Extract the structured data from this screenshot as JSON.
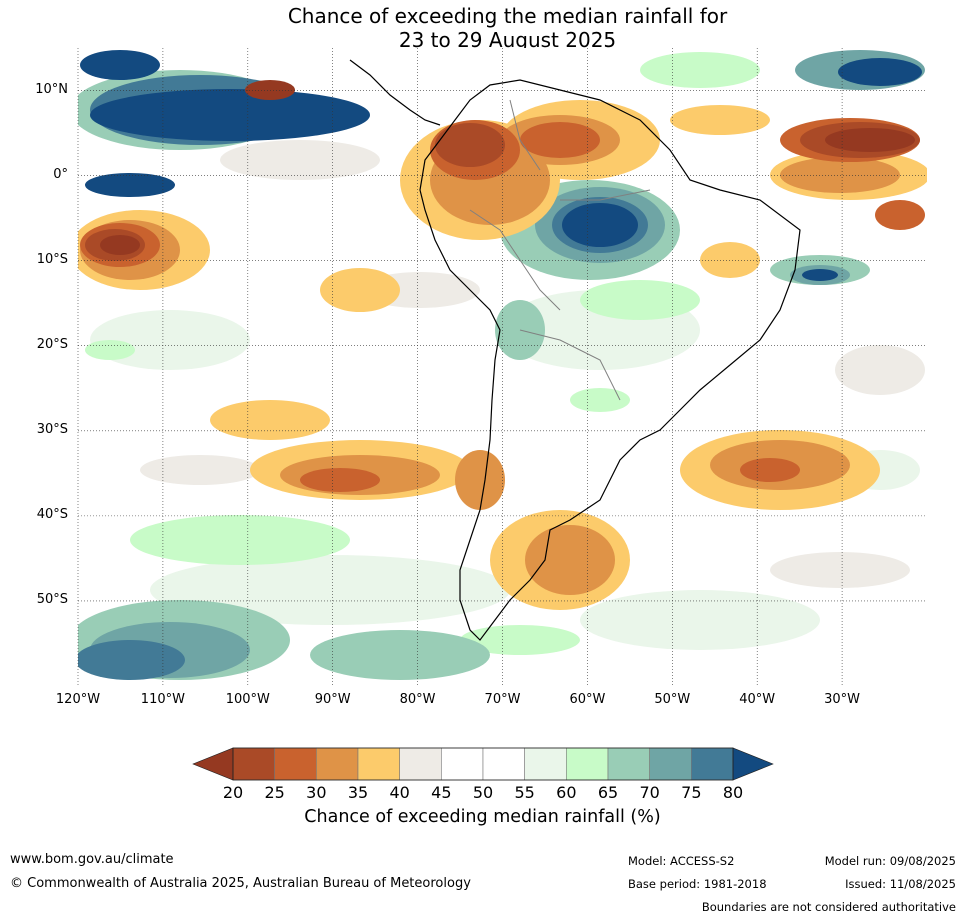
{
  "title_line1": "Chance of exceeding the median rainfall for",
  "title_line2": "23 to 29 August 2025",
  "map": {
    "lon_range": [
      -120,
      -20
    ],
    "lat_range": [
      -60,
      15
    ],
    "lat_labels": [
      {
        "lat": 10,
        "text": "10°N"
      },
      {
        "lat": 0,
        "text": "0°"
      },
      {
        "lat": -10,
        "text": "10°S"
      },
      {
        "lat": -20,
        "text": "20°S"
      },
      {
        "lat": -30,
        "text": "30°S"
      },
      {
        "lat": -40,
        "text": "40°S"
      },
      {
        "lat": -50,
        "text": "50°S"
      }
    ],
    "lon_labels": [
      {
        "lon": -120,
        "text": "120°W"
      },
      {
        "lon": -110,
        "text": "110°W"
      },
      {
        "lon": -100,
        "text": "100°W"
      },
      {
        "lon": -90,
        "text": "90°W"
      },
      {
        "lon": -80,
        "text": "80°W"
      },
      {
        "lon": -70,
        "text": "70°W"
      },
      {
        "lon": -60,
        "text": "60°W"
      },
      {
        "lon": -50,
        "text": "50°W"
      },
      {
        "lon": -40,
        "text": "40°W"
      },
      {
        "lon": -30,
        "text": "30°W"
      }
    ],
    "gridlines": true
  },
  "colorbar": {
    "ticks": [
      "20",
      "25",
      "30",
      "35",
      "40",
      "45",
      "50",
      "55",
      "60",
      "65",
      "70",
      "75",
      "80"
    ],
    "colors": [
      "#aa4a27",
      "#c9622e",
      "#df9347",
      "#fccb6b",
      "#eeebe6",
      "#ffffff",
      "#ffffff",
      "#eaf6ea",
      "#c8fbc8",
      "#99cdb6",
      "#6fa5a5",
      "#427a96"
    ],
    "under_color": "#953921",
    "over_color": "#134a80",
    "label": "Chance of exceeding median rainfall (%)"
  },
  "colors": {
    "lt20": "#953921",
    "c20_25": "#aa4a27",
    "c25_30": "#c9622e",
    "c30_35": "#df9347",
    "c35_40": "#fccb6b",
    "c40_45": "#eeebe6",
    "c55_60": "#eaf6ea",
    "c60_65": "#c8fbc8",
    "c65_70": "#99cdb6",
    "c70_75": "#6fa5a5",
    "c75_80": "#427a96",
    "gt80": "#134a80"
  },
  "footer": {
    "website": "www.bom.gov.au/climate",
    "copyright": "© Commonwealth of Australia 2025, Australian Bureau of Meteorology",
    "model": "Model: ACCESS-S2",
    "base_period": "Base period: 1981-2018",
    "model_run": "Model run: 09/08/2025",
    "issued": "Issued: 11/08/2025",
    "disclaimer": "Boundaries are not considered authoritative"
  }
}
